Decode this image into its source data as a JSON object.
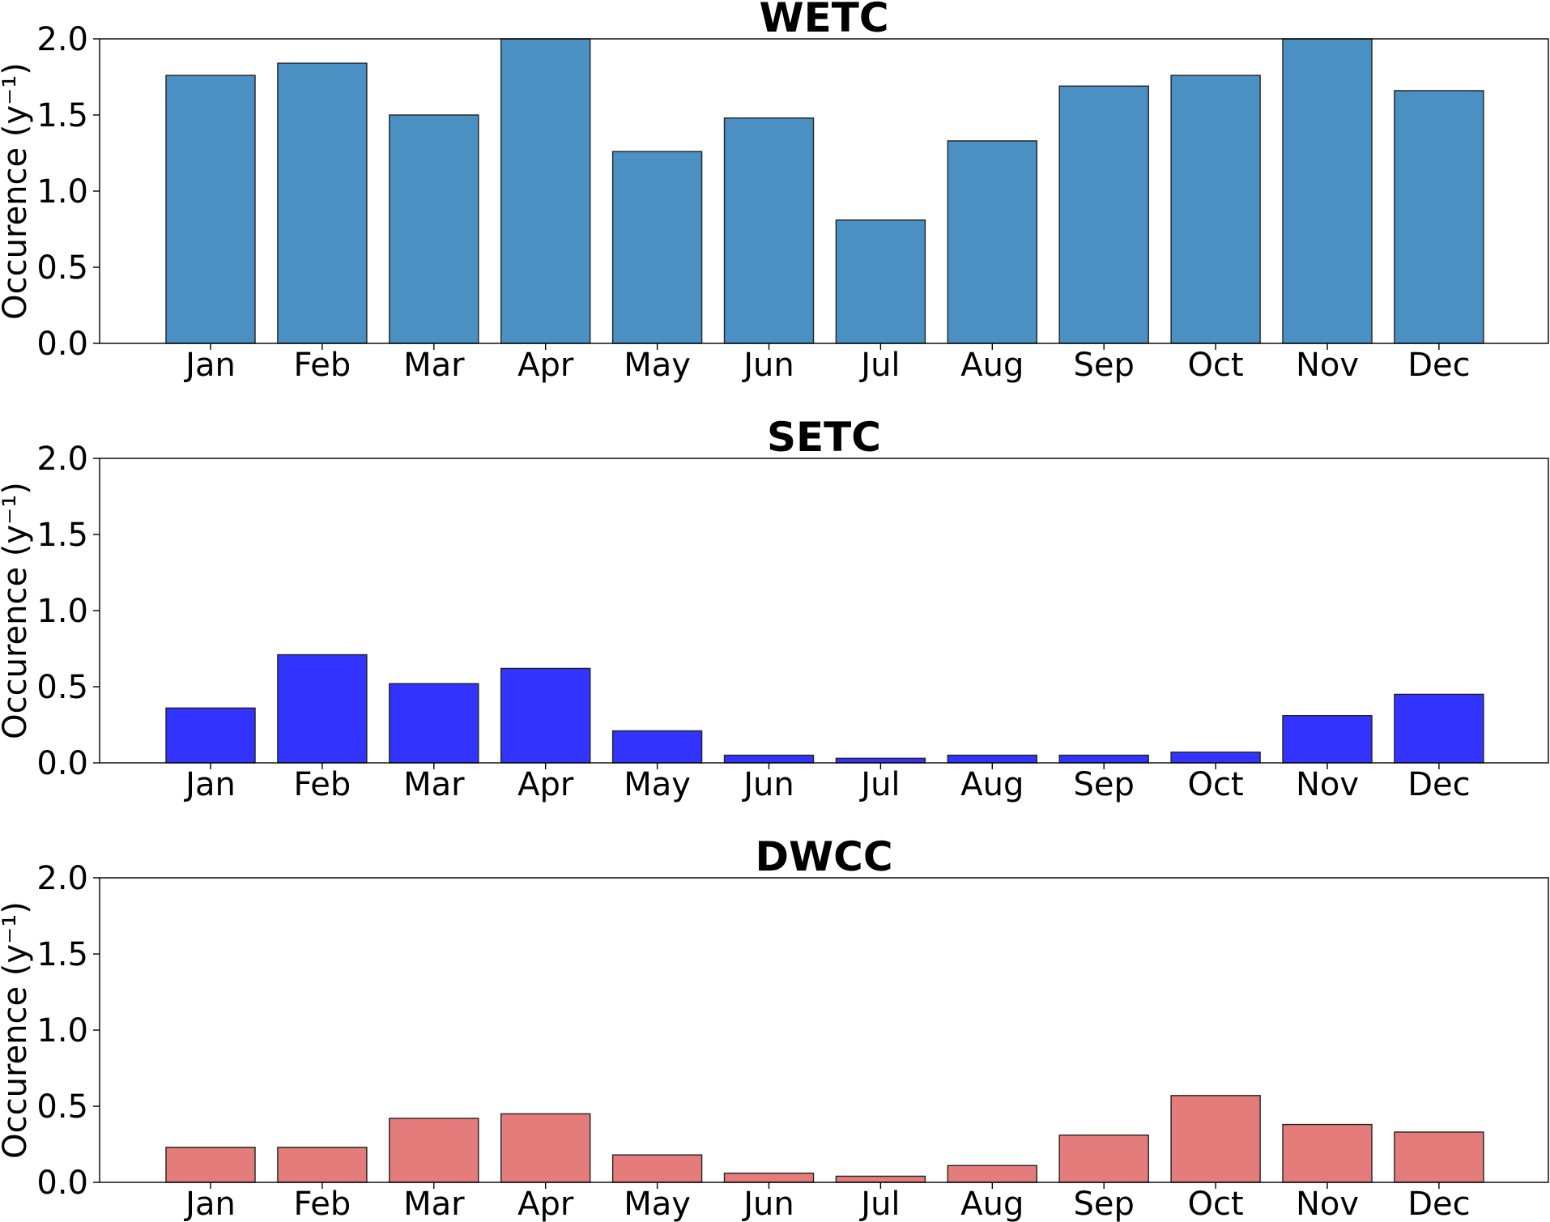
{
  "chart_data": [
    {
      "type": "bar",
      "title": "WETC",
      "ylabel": "Occurence (y⁻¹)",
      "color": "#4a90c2",
      "categories": [
        "Jan",
        "Feb",
        "Mar",
        "Apr",
        "May",
        "Jun",
        "Jul",
        "Aug",
        "Sep",
        "Oct",
        "Nov",
        "Dec"
      ],
      "values": [
        1.76,
        1.84,
        1.5,
        2.0,
        1.26,
        1.48,
        0.81,
        1.33,
        1.69,
        1.76,
        2.0,
        1.66
      ],
      "ylim": [
        0,
        2.0
      ],
      "yticks": [
        "0.0",
        "0.5",
        "1.0",
        "1.5",
        "2.0"
      ],
      "grid": false
    },
    {
      "type": "bar",
      "title": "SETC",
      "ylabel": "Occurence (y⁻¹)",
      "color": "#3333ff",
      "categories": [
        "Jan",
        "Feb",
        "Mar",
        "Apr",
        "May",
        "Jun",
        "Jul",
        "Aug",
        "Sep",
        "Oct",
        "Nov",
        "Dec"
      ],
      "values": [
        0.36,
        0.71,
        0.52,
        0.62,
        0.21,
        0.05,
        0.03,
        0.05,
        0.05,
        0.07,
        0.31,
        0.45
      ],
      "ylim": [
        0,
        2.0
      ],
      "yticks": [
        "0.0",
        "0.5",
        "1.0",
        "1.5",
        "2.0"
      ],
      "grid": false
    },
    {
      "type": "bar",
      "title": "DWCC",
      "ylabel": "Occurence (y⁻¹)",
      "color": "#e57c7c",
      "categories": [
        "Jan",
        "Feb",
        "Mar",
        "Apr",
        "May",
        "Jun",
        "Jul",
        "Aug",
        "Sep",
        "Oct",
        "Nov",
        "Dec"
      ],
      "values": [
        0.23,
        0.23,
        0.42,
        0.45,
        0.18,
        0.06,
        0.04,
        0.11,
        0.31,
        0.57,
        0.38,
        0.33
      ],
      "ylim": [
        0,
        2.0
      ],
      "yticks": [
        "0.0",
        "0.5",
        "1.0",
        "1.5",
        "2.0"
      ],
      "grid": false
    }
  ]
}
